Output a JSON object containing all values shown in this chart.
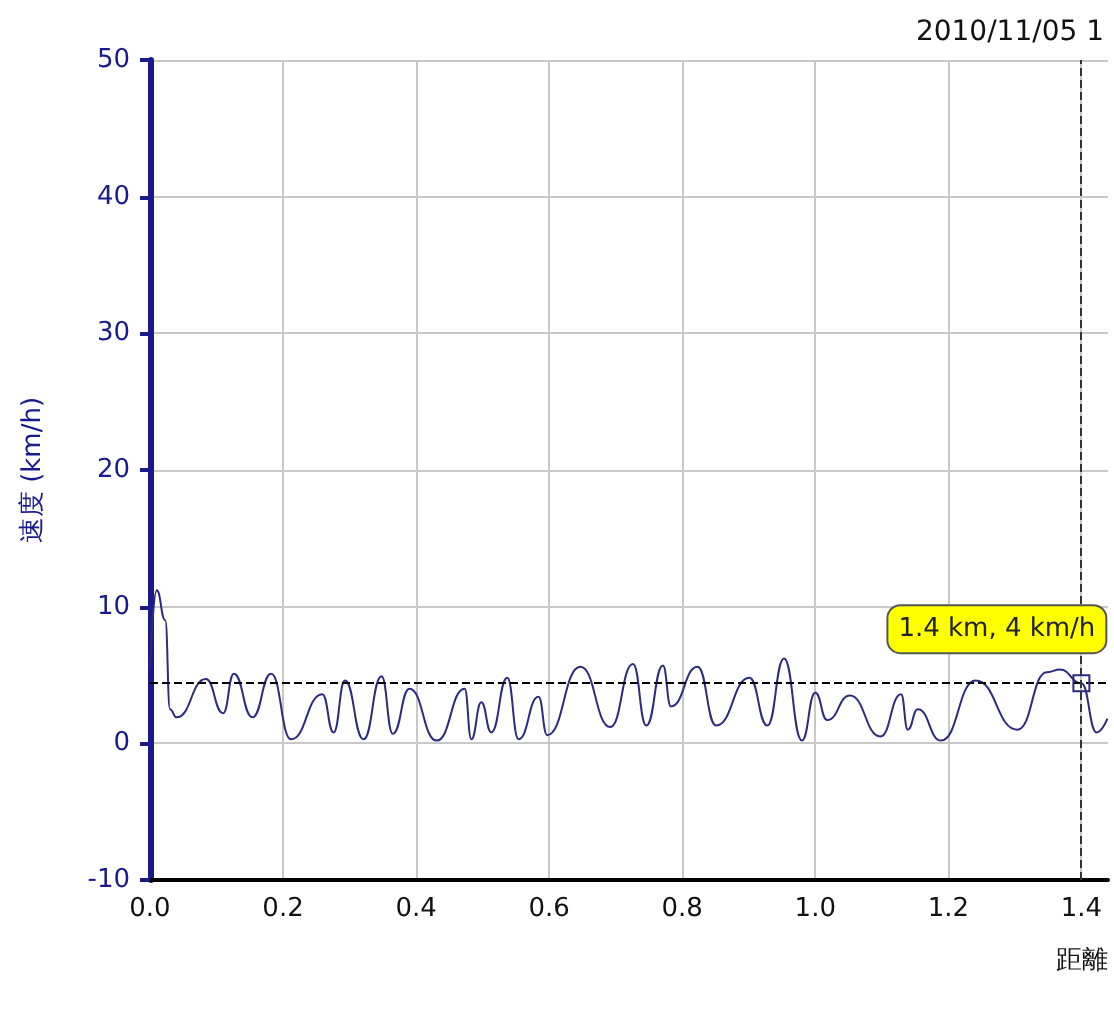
{
  "chart_data": {
    "type": "line",
    "title": "2010/11/05 1",
    "xlabel": "距離",
    "ylabel": "速度 (km/h)",
    "xlim": [
      0,
      1.44
    ],
    "xticks": [
      {
        "value": 0,
        "label": "0.0"
      },
      {
        "value": 0.2,
        "label": "0.2"
      },
      {
        "value": 0.4,
        "label": "0.4"
      },
      {
        "value": 0.6,
        "label": "0.6"
      },
      {
        "value": 0.8,
        "label": "0.8"
      },
      {
        "value": 1,
        "label": "1.0"
      },
      {
        "value": 1.2,
        "label": "1.2"
      },
      {
        "value": 1.4,
        "label": "1.4"
      }
    ],
    "ylim": [
      -10,
      50
    ],
    "yticks": [
      -10,
      0,
      10,
      20,
      30,
      40,
      50
    ],
    "grid": true,
    "marker": "none",
    "line_style": "solid",
    "series": [
      {
        "color": "#2b2b80",
        "x": [
          0,
          0.01,
          0.023,
          0.03,
          0.04,
          0.084,
          0.11,
          0.126,
          0.154,
          0.182,
          0.212,
          0.259,
          0.276,
          0.293,
          0.321,
          0.348,
          0.365,
          0.39,
          0.431,
          0.473,
          0.483,
          0.498,
          0.513,
          0.537,
          0.554,
          0.584,
          0.597,
          0.647,
          0.692,
          0.726,
          0.746,
          0.771,
          0.783,
          0.823,
          0.851,
          0.901,
          0.928,
          0.953,
          0.98,
          1.0,
          1.018,
          1.052,
          1.098,
          1.129,
          1.139,
          1.154,
          1.189,
          1.241,
          1.304,
          1.348,
          1.368,
          1.4,
          1.423,
          1.439
        ],
        "values": [
          5.5,
          11.2,
          9,
          2.5,
          1.9,
          4.7,
          2.2,
          5.1,
          1.9,
          5.1,
          0.3,
          3.6,
          0.8,
          4.6,
          0.3,
          4.9,
          0.7,
          4.0,
          0.2,
          4.0,
          0.3,
          3.0,
          0.8,
          4.8,
          0.3,
          3.4,
          0.6,
          5.6,
          1.2,
          5.8,
          1.3,
          5.7,
          2.7,
          5.6,
          1.3,
          4.8,
          1.3,
          6.2,
          0.2,
          3.7,
          1.7,
          3.5,
          0.5,
          3.6,
          1.0,
          2.5,
          0.2,
          4.6,
          1.0,
          5.2,
          5.4,
          4.4,
          0.8,
          1.8
        ]
      }
    ],
    "ref_lines": [
      {
        "axis": "y",
        "value": 4.4,
        "color": "#000000",
        "line_style": "dashed"
      },
      {
        "axis": "x",
        "value": 1.4,
        "color": "#333333",
        "line_style": "dashed"
      }
    ],
    "annotations": [
      {
        "text": "1.4 km, 4 km/h",
        "x": 1.4,
        "y": 4.4
      }
    ]
  }
}
